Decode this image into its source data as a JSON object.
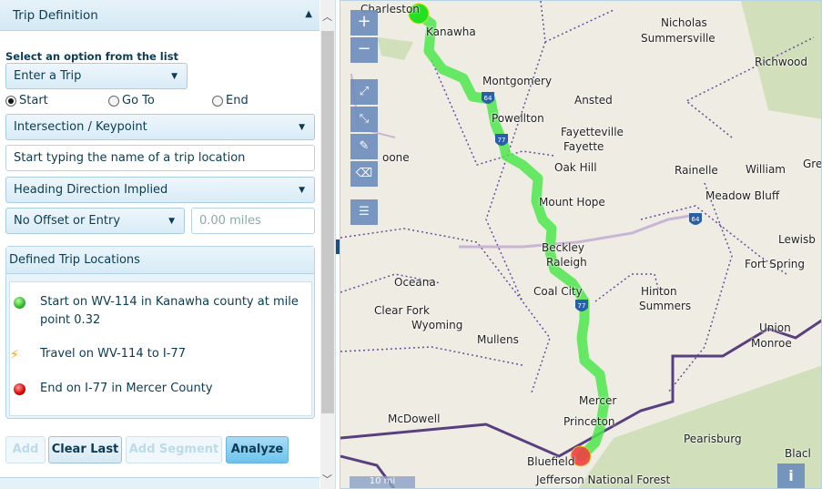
{
  "panel": {
    "title": "Trip Definition",
    "select_label": "Select an option from the list",
    "trip_select": "Enter a Trip",
    "radios": [
      {
        "label": "Start",
        "checked": true
      },
      {
        "label": "Go To",
        "checked": false
      },
      {
        "label": "End",
        "checked": false
      }
    ],
    "keypoint_select": "Intersection / Keypoint",
    "location_input_placeholder": "Start typing the name of a trip location",
    "heading_select": "Heading Direction Implied",
    "offset_select": "No Offset or Entry",
    "offset_miles_placeholder": "0.00 miles"
  },
  "locations": {
    "title": "Defined Trip Locations",
    "items": [
      {
        "icon": "green-dot-icon",
        "text": "Start on WV-114 in Kanawha county at mile point 0.32"
      },
      {
        "icon": "travel-route-icon",
        "text": "Travel on WV-114 to I-77"
      },
      {
        "icon": "red-dot-icon",
        "text": "End on I-77 in Mercer County"
      }
    ]
  },
  "buttons": {
    "add": "Add",
    "clear_last": "Clear Last",
    "add_segment": "Add Segment",
    "analyze": "Analyze"
  },
  "map": {
    "zoom_in": "+",
    "zoom_out": "−",
    "info": "i",
    "scale": "10 mi",
    "route_color": "#4ee84e",
    "labels": [
      "Charleston",
      "Kanawha",
      "Nicholas",
      "Summersville",
      "Richwood",
      "Montgomery",
      "Ansted",
      "Powellton",
      "Fayetteville",
      "Fayette",
      "Oak Hill",
      "Rainelle",
      "William",
      "Gre",
      "Meadow Bluff",
      "Mount Hope",
      "Lewisb",
      "Beckley",
      "Raleigh",
      "Fort Spring",
      "Oceana",
      "Coal City",
      "Hinton",
      "Summers",
      "Clear Fork",
      "Wyoming",
      "Mullens",
      "Union",
      "Monroe",
      "Mercer",
      "McDowell",
      "Princeton",
      "Pearisburg",
      "Bluefield",
      "Jefferson National Forest",
      "oone",
      "Blacl"
    ],
    "shields": [
      "64",
      "77",
      "77",
      "64"
    ]
  }
}
